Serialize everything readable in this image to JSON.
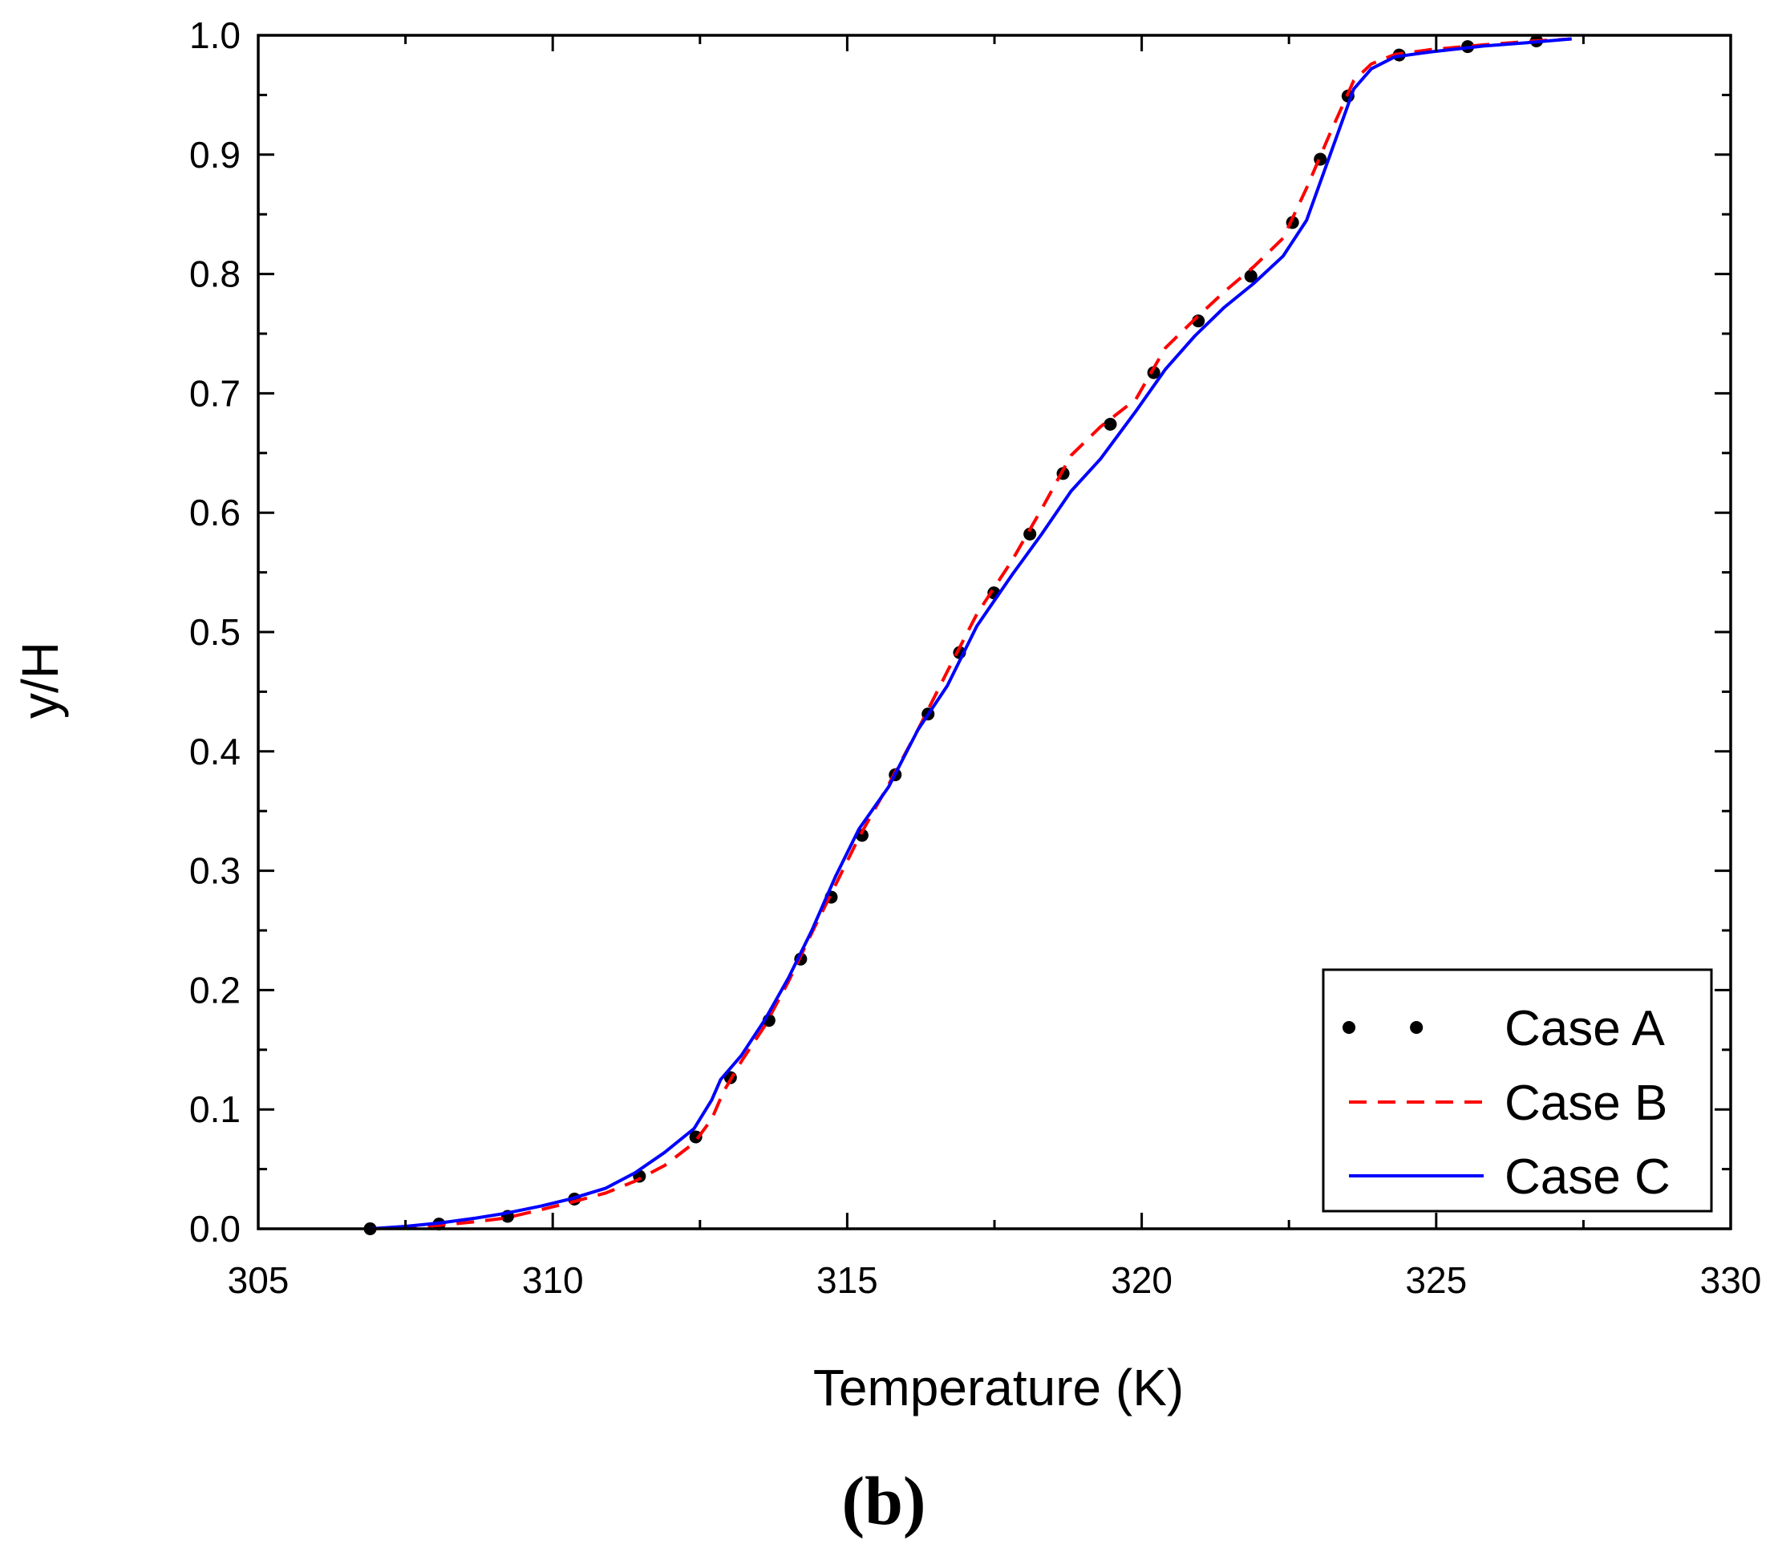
{
  "chart_data": {
    "type": "line",
    "panel_label": "(b)",
    "xlabel": "Temperature (K)",
    "ylabel": "y/H",
    "xlim": [
      305,
      330
    ],
    "ylim": [
      0,
      1.0
    ],
    "x_ticks": [
      305,
      310,
      315,
      320,
      325,
      330
    ],
    "x_tick_labels": [
      "305",
      "310",
      "315",
      "320",
      "325",
      "330"
    ],
    "y_ticks": [
      0.0,
      0.1,
      0.2,
      0.3,
      0.4,
      0.5,
      0.6,
      0.7,
      0.8,
      0.9,
      1.0
    ],
    "y_tick_labels": [
      "0.0",
      "0.1",
      "0.2",
      "0.3",
      "0.4",
      "0.5",
      "0.6",
      "0.7",
      "0.8",
      "0.9",
      "1.0"
    ],
    "grid": false,
    "legend_position": "bottom-right",
    "series": [
      {
        "name": "Case A",
        "color": "#000000",
        "style": "dotted",
        "x": [
          306.9,
          307.5,
          308.1,
          308.7,
          309.2,
          309.8,
          310.3,
          310.9,
          311.4,
          311.9,
          312.4,
          312.7,
          312.9,
          313.2,
          313.6,
          314.0,
          314.4,
          314.8,
          315.2,
          315.7,
          316.2,
          316.7,
          317.2,
          317.8,
          318.3,
          318.8,
          319.3,
          319.9,
          320.4,
          320.9,
          321.4,
          321.9,
          322.4,
          322.8,
          323.2,
          323.6,
          323.9,
          324.3,
          324.9,
          325.8,
          326.6,
          327.3
        ],
        "y": [
          0.0,
          0.002,
          0.004,
          0.007,
          0.01,
          0.017,
          0.024,
          0.032,
          0.042,
          0.056,
          0.075,
          0.095,
          0.118,
          0.14,
          0.168,
          0.205,
          0.245,
          0.285,
          0.325,
          0.37,
          0.415,
          0.462,
          0.512,
          0.555,
          0.6,
          0.645,
          0.668,
          0.69,
          0.735,
          0.758,
          0.78,
          0.8,
          0.825,
          0.87,
          0.915,
          0.96,
          0.975,
          0.983,
          0.987,
          0.992,
          0.995,
          0.997
        ]
      },
      {
        "name": "Case B",
        "color": "#ff0000",
        "style": "dashed",
        "x": [
          306.9,
          307.5,
          308.1,
          308.7,
          309.2,
          309.8,
          310.3,
          310.9,
          311.4,
          311.9,
          312.4,
          312.7,
          312.9,
          313.2,
          313.6,
          314.0,
          314.4,
          314.8,
          315.2,
          315.7,
          316.2,
          316.7,
          317.2,
          317.8,
          318.3,
          318.8,
          319.3,
          319.9,
          320.4,
          320.9,
          321.4,
          321.9,
          322.4,
          322.8,
          323.2,
          323.6,
          323.9,
          324.3,
          324.9,
          325.8,
          326.6,
          327.3
        ],
        "y": [
          0.0,
          0.001,
          0.003,
          0.006,
          0.009,
          0.016,
          0.022,
          0.03,
          0.04,
          0.053,
          0.072,
          0.092,
          0.115,
          0.14,
          0.17,
          0.207,
          0.248,
          0.288,
          0.328,
          0.372,
          0.418,
          0.467,
          0.515,
          0.56,
          0.603,
          0.648,
          0.672,
          0.695,
          0.738,
          0.762,
          0.785,
          0.806,
          0.83,
          0.872,
          0.918,
          0.962,
          0.976,
          0.984,
          0.988,
          0.992,
          0.995,
          0.997
        ]
      },
      {
        "name": "Case C",
        "color": "#0000ff",
        "style": "solid",
        "x": [
          306.9,
          307.5,
          308.1,
          308.7,
          309.2,
          309.8,
          310.3,
          310.9,
          311.4,
          311.9,
          312.4,
          312.7,
          312.85,
          313.2,
          313.6,
          314.0,
          314.4,
          314.8,
          315.2,
          315.7,
          316.2,
          316.7,
          317.2,
          317.8,
          318.3,
          318.8,
          319.3,
          319.9,
          320.4,
          320.9,
          321.4,
          321.9,
          322.4,
          322.8,
          323.2,
          323.6,
          323.9,
          324.3,
          324.9,
          325.8,
          326.6,
          327.3
        ],
        "y": [
          0.0,
          0.002,
          0.005,
          0.009,
          0.013,
          0.019,
          0.025,
          0.034,
          0.047,
          0.064,
          0.084,
          0.108,
          0.125,
          0.145,
          0.175,
          0.21,
          0.25,
          0.295,
          0.335,
          0.37,
          0.418,
          0.455,
          0.505,
          0.548,
          0.582,
          0.618,
          0.645,
          0.685,
          0.72,
          0.748,
          0.772,
          0.792,
          0.815,
          0.845,
          0.9,
          0.955,
          0.972,
          0.982,
          0.986,
          0.991,
          0.994,
          0.997
        ]
      }
    ]
  }
}
